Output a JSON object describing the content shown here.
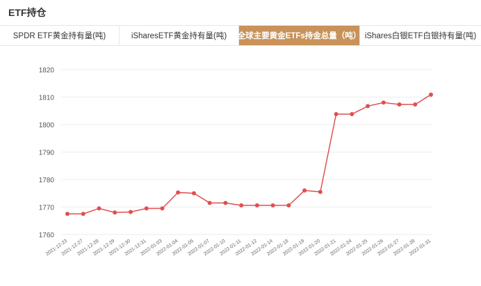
{
  "header": {
    "title": "ETF持仓"
  },
  "tabs": [
    {
      "label": "SPDR ETF黄金持有量(吨)",
      "active": false
    },
    {
      "label": "iSharesETF黄金持有量(吨)",
      "active": false
    },
    {
      "label": "全球主要黄金ETFs持金总量（吨）",
      "active": true
    },
    {
      "label": "iShares白银ETF白银持有量(吨)",
      "active": false
    }
  ],
  "colors": {
    "accent": "#c8925a",
    "line": "#e05050"
  },
  "chart_data": {
    "type": "line",
    "title": "",
    "xlabel": "",
    "ylabel": "",
    "ylim": [
      1760,
      1820
    ],
    "yticks": [
      1760,
      1770,
      1780,
      1790,
      1800,
      1810,
      1820
    ],
    "grid": true,
    "categories": [
      "2021-12-23",
      "2021-12-27",
      "2021-12-28",
      "2021-12-29",
      "2021-12-30",
      "2021-12-31",
      "2022-01-03",
      "2022-01-04",
      "2022-01-05",
      "2022-01-07",
      "2022-01-10",
      "2022-01-11",
      "2022-01-12",
      "2022-01-14",
      "2022-01-18",
      "2022-01-19",
      "2022-01-20",
      "2022-01-21",
      "2022-01-24",
      "2022-01-25",
      "2022-01-26",
      "2022-01-27",
      "2022-01-28",
      "2022-01-31"
    ],
    "series": [
      {
        "values": [
          1767.5,
          1767.5,
          1769.5,
          1768.0,
          1768.2,
          1769.5,
          1769.5,
          1775.3,
          1775.0,
          1771.5,
          1771.5,
          1770.6,
          1770.6,
          1770.6,
          1770.6,
          1776.0,
          1775.5,
          1803.8,
          1803.8,
          1806.7,
          1808.0,
          1807.3,
          1807.3,
          1810.9
        ]
      }
    ]
  }
}
